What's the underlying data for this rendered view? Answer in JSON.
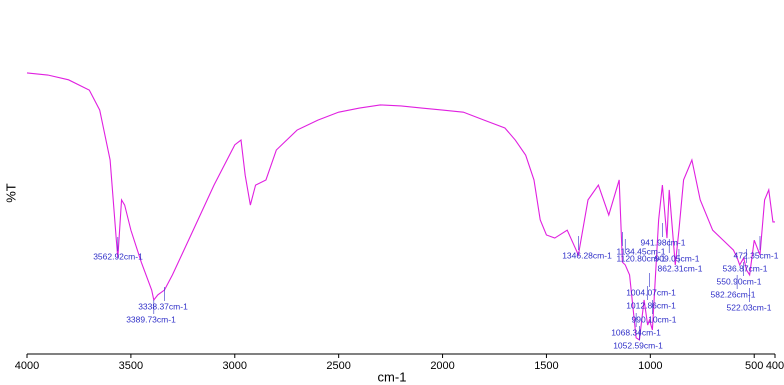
{
  "chart_data": {
    "type": "line",
    "x_label": "cm-1",
    "y_label": "%T",
    "color": "#e020e0",
    "xlim": [
      4000,
      400
    ],
    "ylim": [
      0,
      100
    ],
    "xticks": [
      4000,
      3500,
      3000,
      2500,
      2000,
      1500,
      1000,
      500,
      400
    ],
    "x": [
      4000,
      3900,
      3800,
      3700,
      3650,
      3600,
      3570,
      3562.92,
      3545,
      3530,
      3500,
      3450,
      3400,
      3389.73,
      3370,
      3338.37,
      3300,
      3200,
      3100,
      3000,
      2970,
      2950,
      2925,
      2900,
      2850,
      2800,
      2700,
      2600,
      2500,
      2400,
      2300,
      2200,
      2100,
      2000,
      1900,
      1800,
      1700,
      1650,
      1600,
      1560,
      1530,
      1500,
      1460,
      1400,
      1346.28,
      1300,
      1250,
      1200,
      1150,
      1134.45,
      1120.8,
      1100,
      1068.34,
      1052.59,
      1030,
      1012.86,
      1004.07,
      990.1,
      960,
      941.98,
      920,
      909.05,
      880,
      862.31,
      840,
      800,
      760,
      700,
      650,
      600,
      582.26,
      570,
      550.9,
      536.87,
      522.03,
      500,
      472.35,
      450,
      430,
      410,
      400
    ],
    "values": [
      81.7,
      81.1,
      79.7,
      76.7,
      70.9,
      56.4,
      33.1,
      27.9,
      44.8,
      43.3,
      36.0,
      26.7,
      18.6,
      15.7,
      17.2,
      18.6,
      23.0,
      36.0,
      49.1,
      60.8,
      62.2,
      52.0,
      43.3,
      49.1,
      50.6,
      59.3,
      65.1,
      68.0,
      70.3,
      71.5,
      72.4,
      72.1,
      71.5,
      70.9,
      70.3,
      68.0,
      65.7,
      62.2,
      57.8,
      50.6,
      39.0,
      34.6,
      33.7,
      36.0,
      28.8,
      44.8,
      49.1,
      40.4,
      50.6,
      26.7,
      25.9,
      23.0,
      4.7,
      4.1,
      15.7,
      8.4,
      9.9,
      7.0,
      39.0,
      49.1,
      33.7,
      47.7,
      25.9,
      36.0,
      50.6,
      56.4,
      44.8,
      36.0,
      33.1,
      30.2,
      28.0,
      25.9,
      27.9,
      24.4,
      23.0,
      33.1,
      28.8,
      44.8,
      47.7,
      38.4,
      38.4
    ],
    "annotations": [
      {
        "text": "3562.92cm-1",
        "x": 3562.92
      },
      {
        "text": "3338.37cm-1",
        "x": 3338.37
      },
      {
        "text": "3389.73cm-1",
        "x": 3389.73
      },
      {
        "text": "1346.28cm-1",
        "x": 1346.28
      },
      {
        "text": "1134.45cm-1",
        "x": 1134.45
      },
      {
        "text": "1120.80cm-1",
        "x": 1120.8
      },
      {
        "text": "941.98cm-1",
        "x": 941.98
      },
      {
        "text": "909.05cm-1",
        "x": 909.05
      },
      {
        "text": "862.31cm-1",
        "x": 862.31
      },
      {
        "text": "1004.07cm-1",
        "x": 1004.07
      },
      {
        "text": "1012.86cm-1",
        "x": 1012.86
      },
      {
        "text": "990.10cm-1",
        "x": 990.1
      },
      {
        "text": "1068.34cm-1",
        "x": 1068.34
      },
      {
        "text": "1052.59cm-1",
        "x": 1052.59
      },
      {
        "text": "472.35cm-1",
        "x": 472.35
      },
      {
        "text": "536.87cm-1",
        "x": 536.87
      },
      {
        "text": "550.90cm-1",
        "x": 550.9
      },
      {
        "text": "582.26cm-1",
        "x": 582.26
      },
      {
        "text": "522.03cm-1",
        "x": 522.03
      }
    ]
  }
}
